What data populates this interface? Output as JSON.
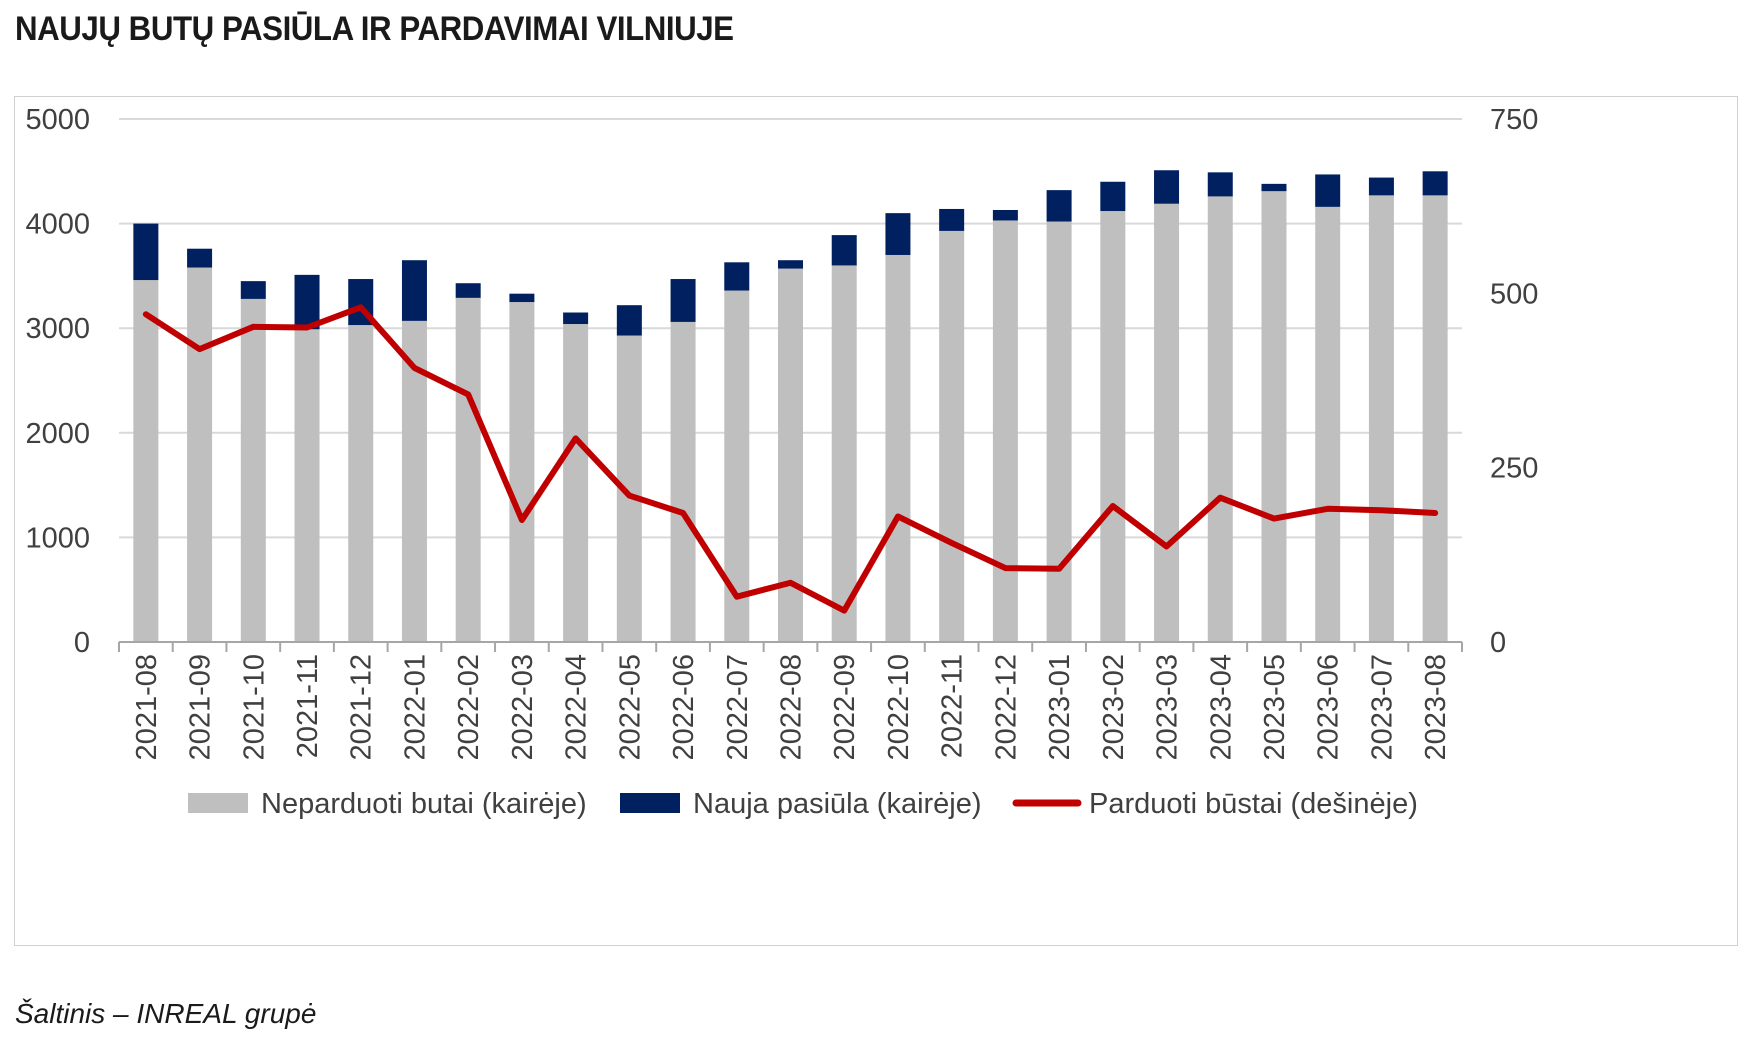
{
  "title": "NAUJŲ BUTŲ PASIŪLA IR PARDAVIMAI VILNIUJE",
  "source": "Šaltinis – INREAL grupė",
  "chart_data": {
    "type": "bar",
    "categories": [
      "2021-08",
      "2021-09",
      "2021-10",
      "2021-11",
      "2021-12",
      "2022-01",
      "2022-02",
      "2022-03",
      "2022-04",
      "2022-05",
      "2022-06",
      "2022-07",
      "2022-08",
      "2022-09",
      "2022-10",
      "2022-11",
      "2022-12",
      "2023-01",
      "2023-02",
      "2023-03",
      "2023-04",
      "2023-05",
      "2023-06",
      "2023-07",
      "2023-08"
    ],
    "series": [
      {
        "name": "Neparduoti butai (kairėje)",
        "kind": "bar-stacked",
        "axis": "left",
        "color": "#bfbfbf",
        "values": [
          3460,
          3580,
          3280,
          2990,
          3030,
          3070,
          3290,
          3250,
          3040,
          2930,
          3060,
          3360,
          3570,
          3600,
          3700,
          3930,
          4030,
          4020,
          4120,
          4190,
          4260,
          4310,
          4160,
          4270,
          4270
        ]
      },
      {
        "name": "Nauja pasiūla (kairėje)",
        "kind": "bar-stacked",
        "axis": "left",
        "color": "#002060",
        "values": [
          540,
          180,
          170,
          520,
          440,
          580,
          140,
          80,
          110,
          290,
          410,
          270,
          80,
          290,
          400,
          210,
          100,
          300,
          280,
          320,
          230,
          70,
          310,
          170,
          230
        ]
      },
      {
        "name": "Parduoti būstai (dešinėje)",
        "kind": "line",
        "axis": "right",
        "color": "#c00000",
        "values": [
          470,
          420,
          452,
          451,
          480,
          393,
          355,
          175,
          292,
          210,
          185,
          65,
          85,
          45,
          180,
          142,
          106,
          105,
          195,
          137,
          207,
          177,
          191,
          189,
          185
        ]
      }
    ],
    "y_left": {
      "min": 0,
      "max": 5000,
      "ticks": [
        0,
        1000,
        2000,
        3000,
        4000,
        5000
      ]
    },
    "y_right": {
      "min": 0,
      "max": 750,
      "ticks": [
        0,
        250,
        500,
        750
      ]
    },
    "grid": true,
    "legend_position": "bottom"
  }
}
